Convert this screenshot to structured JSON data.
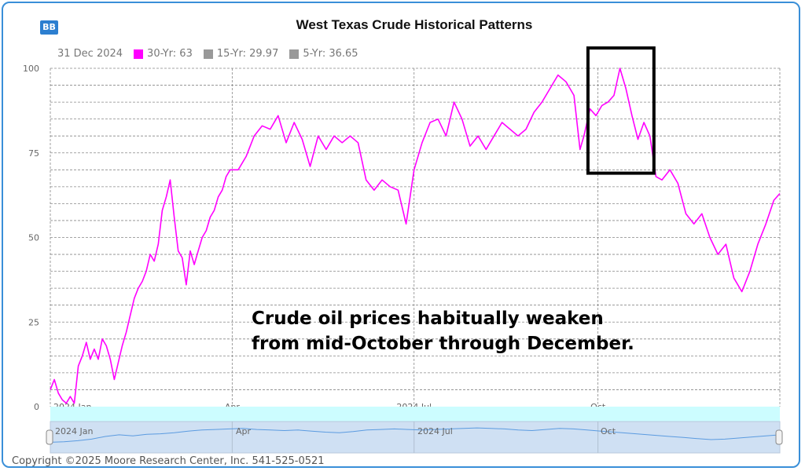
{
  "app": {
    "logo_text": "BB",
    "copyright": "Copyright ©2025 Moore Research Center, Inc. 541-525-0521"
  },
  "legend": {
    "date": "31 Dec 2024",
    "items": [
      {
        "label": "30-Yr: 63",
        "color": "#ff00ff"
      },
      {
        "label": "15-Yr: 29.97",
        "color": "#999999"
      },
      {
        "label": "5-Yr: 36.65",
        "color": "#999999"
      }
    ]
  },
  "annotation": {
    "line1": "Crude oil prices habitually weaken",
    "line2": "from mid-October through December."
  },
  "navigator": {
    "labels": [
      "2024 Jan",
      "Apr",
      "2024 Jul",
      "Oct"
    ]
  },
  "chart_data": {
    "type": "line",
    "title": "West Texas Crude Historical Patterns",
    "xlabel": "",
    "ylabel": "",
    "ylim": [
      0,
      100
    ],
    "yticks": [
      0,
      25,
      50,
      75,
      100
    ],
    "x_ticks": [
      {
        "label": "2024 Jan",
        "day": 0
      },
      {
        "label": "Apr",
        "day": 91
      },
      {
        "label": "2024 Jul",
        "day": 182
      },
      {
        "label": "Oct",
        "day": 274
      }
    ],
    "grid": true,
    "highlight_box": {
      "x_start": "2024-09-26",
      "x_end": "2024-10-29",
      "y_start": 69,
      "y_end": 106
    },
    "series": [
      {
        "name": "30-Yr",
        "color": "#ff00ff",
        "points": [
          [
            "2024-01-01",
            5
          ],
          [
            "2024-01-03",
            8
          ],
          [
            "2024-01-05",
            4
          ],
          [
            "2024-01-07",
            2
          ],
          [
            "2024-01-09",
            1
          ],
          [
            "2024-01-11",
            3
          ],
          [
            "2024-01-13",
            1
          ],
          [
            "2024-01-15",
            12
          ],
          [
            "2024-01-17",
            15
          ],
          [
            "2024-01-19",
            19
          ],
          [
            "2024-01-21",
            14
          ],
          [
            "2024-01-23",
            17
          ],
          [
            "2024-01-25",
            14
          ],
          [
            "2024-01-27",
            20
          ],
          [
            "2024-01-29",
            18
          ],
          [
            "2024-01-31",
            14
          ],
          [
            "2024-02-02",
            8
          ],
          [
            "2024-02-04",
            13
          ],
          [
            "2024-02-06",
            18
          ],
          [
            "2024-02-08",
            22
          ],
          [
            "2024-02-10",
            27
          ],
          [
            "2024-02-12",
            32
          ],
          [
            "2024-02-14",
            35
          ],
          [
            "2024-02-16",
            37
          ],
          [
            "2024-02-18",
            40
          ],
          [
            "2024-02-20",
            45
          ],
          [
            "2024-02-22",
            43
          ],
          [
            "2024-02-24",
            48
          ],
          [
            "2024-02-26",
            58
          ],
          [
            "2024-02-28",
            62
          ],
          [
            "2024-03-01",
            67
          ],
          [
            "2024-03-03",
            56
          ],
          [
            "2024-03-05",
            46
          ],
          [
            "2024-03-07",
            44
          ],
          [
            "2024-03-09",
            36
          ],
          [
            "2024-03-11",
            46
          ],
          [
            "2024-03-13",
            42
          ],
          [
            "2024-03-15",
            46
          ],
          [
            "2024-03-17",
            50
          ],
          [
            "2024-03-19",
            52
          ],
          [
            "2024-03-21",
            56
          ],
          [
            "2024-03-23",
            58
          ],
          [
            "2024-03-25",
            62
          ],
          [
            "2024-03-27",
            64
          ],
          [
            "2024-03-29",
            68
          ],
          [
            "2024-03-31",
            70
          ],
          [
            "2024-04-04",
            70
          ],
          [
            "2024-04-08",
            74
          ],
          [
            "2024-04-12",
            80
          ],
          [
            "2024-04-16",
            83
          ],
          [
            "2024-04-20",
            82
          ],
          [
            "2024-04-24",
            86
          ],
          [
            "2024-04-28",
            78
          ],
          [
            "2024-05-02",
            84
          ],
          [
            "2024-05-06",
            79
          ],
          [
            "2024-05-10",
            71
          ],
          [
            "2024-05-14",
            80
          ],
          [
            "2024-05-18",
            76
          ],
          [
            "2024-05-22",
            80
          ],
          [
            "2024-05-26",
            78
          ],
          [
            "2024-05-30",
            80
          ],
          [
            "2024-06-03",
            78
          ],
          [
            "2024-06-07",
            67
          ],
          [
            "2024-06-11",
            64
          ],
          [
            "2024-06-15",
            67
          ],
          [
            "2024-06-19",
            65
          ],
          [
            "2024-06-23",
            64
          ],
          [
            "2024-06-27",
            54
          ],
          [
            "2024-07-01",
            70
          ],
          [
            "2024-07-05",
            78
          ],
          [
            "2024-07-09",
            84
          ],
          [
            "2024-07-13",
            85
          ],
          [
            "2024-07-17",
            80
          ],
          [
            "2024-07-21",
            90
          ],
          [
            "2024-07-25",
            85
          ],
          [
            "2024-07-29",
            77
          ],
          [
            "2024-08-02",
            80
          ],
          [
            "2024-08-06",
            76
          ],
          [
            "2024-08-10",
            80
          ],
          [
            "2024-08-14",
            84
          ],
          [
            "2024-08-18",
            82
          ],
          [
            "2024-08-22",
            80
          ],
          [
            "2024-08-26",
            82
          ],
          [
            "2024-08-30",
            87
          ],
          [
            "2024-09-03",
            90
          ],
          [
            "2024-09-07",
            94
          ],
          [
            "2024-09-11",
            98
          ],
          [
            "2024-09-15",
            96
          ],
          [
            "2024-09-19",
            92
          ],
          [
            "2024-09-22",
            76
          ],
          [
            "2024-09-24",
            80
          ],
          [
            "2024-09-27",
            88
          ],
          [
            "2024-09-30",
            86
          ],
          [
            "2024-10-03",
            89
          ],
          [
            "2024-10-06",
            90
          ],
          [
            "2024-10-09",
            92
          ],
          [
            "2024-10-12",
            100
          ],
          [
            "2024-10-15",
            94
          ],
          [
            "2024-10-18",
            86
          ],
          [
            "2024-10-21",
            79
          ],
          [
            "2024-10-24",
            84
          ],
          [
            "2024-10-27",
            80
          ],
          [
            "2024-10-30",
            68
          ],
          [
            "2024-11-02",
            67
          ],
          [
            "2024-11-06",
            70
          ],
          [
            "2024-11-10",
            66
          ],
          [
            "2024-11-14",
            57
          ],
          [
            "2024-11-18",
            54
          ],
          [
            "2024-11-22",
            57
          ],
          [
            "2024-11-26",
            50
          ],
          [
            "2024-11-30",
            45
          ],
          [
            "2024-12-04",
            48
          ],
          [
            "2024-12-08",
            38
          ],
          [
            "2024-12-12",
            34
          ],
          [
            "2024-12-16",
            40
          ],
          [
            "2024-12-20",
            48
          ],
          [
            "2024-12-24",
            54
          ],
          [
            "2024-12-28",
            61
          ],
          [
            "2024-12-31",
            63
          ]
        ]
      }
    ],
    "navigator_series": [
      34,
      36,
      40,
      46,
      56,
      62,
      58,
      64,
      66,
      70,
      76,
      80,
      82,
      84,
      86,
      82,
      80,
      78,
      80,
      76,
      72,
      70,
      74,
      80,
      82,
      84,
      82,
      80,
      82,
      84,
      86,
      88,
      86,
      84,
      80,
      78,
      82,
      86,
      84,
      80,
      76,
      72,
      68,
      64,
      60,
      56,
      52,
      48,
      44,
      46,
      50,
      54,
      58,
      62
    ]
  }
}
